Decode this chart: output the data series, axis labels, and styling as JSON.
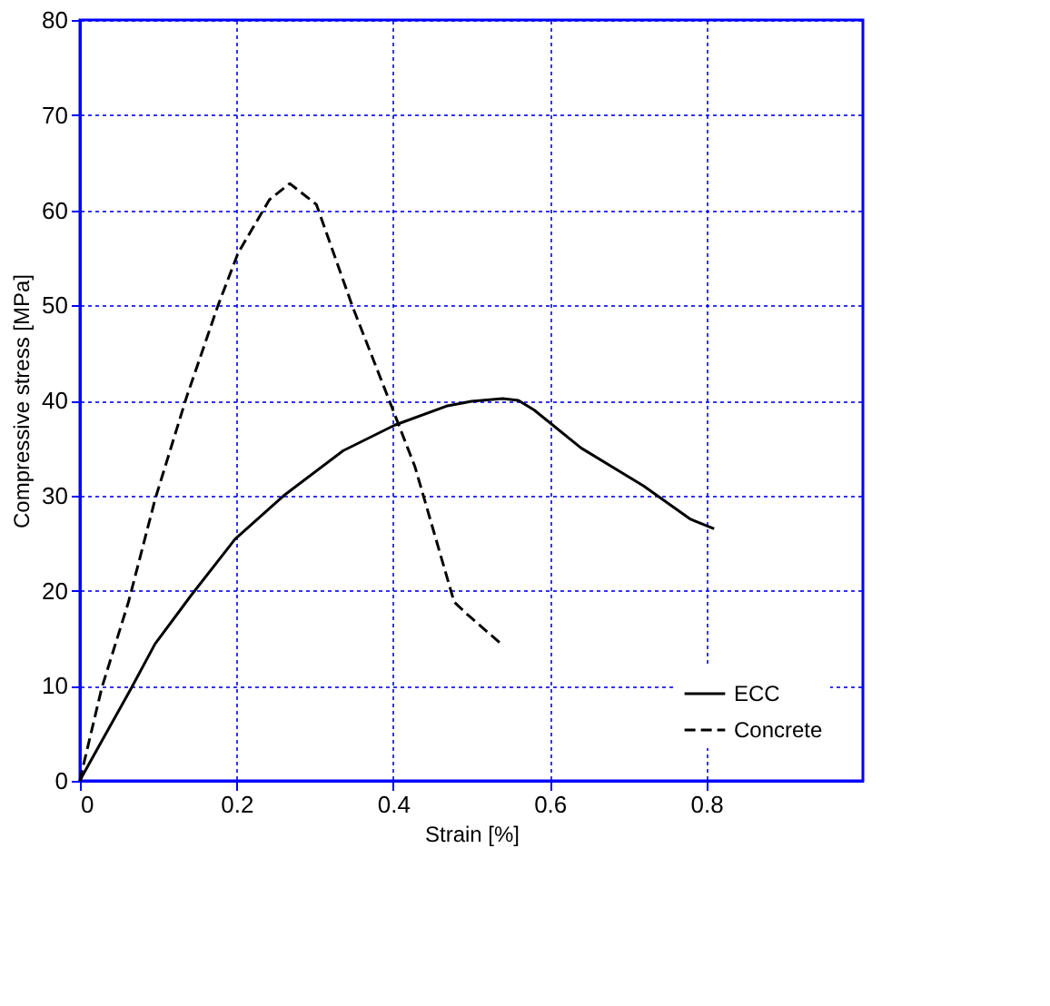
{
  "chart_data": {
    "type": "line",
    "xlabel": "Strain [%]",
    "ylabel": "Compressive stress [MPa]",
    "xlim": [
      0,
      1
    ],
    "ylim": [
      0,
      80
    ],
    "xticks": [
      0,
      0.2,
      0.4,
      0.6,
      0.8
    ],
    "yticks": [
      0,
      10,
      20,
      30,
      40,
      50,
      60,
      70,
      80
    ],
    "grid": true,
    "legend": "bottom right",
    "marker": "none",
    "series": [
      {
        "name": "ECC",
        "color": "#000000",
        "line_style": "solid",
        "x": [
          0,
          0.003,
          0.028,
          0.066,
          0.096,
          0.142,
          0.198,
          0.262,
          0.336,
          0.402,
          0.468,
          0.5,
          0.54,
          0.56,
          0.58,
          0.64,
          0.72,
          0.78,
          0.81
        ],
        "values": [
          0,
          0.5,
          4.2,
          9.8,
          14.4,
          19.5,
          25.4,
          30.1,
          34.7,
          37.4,
          39.4,
          39.9,
          40.2,
          40,
          39,
          35,
          31,
          27.5,
          26.5
        ]
      },
      {
        "name": "Concrete",
        "color": "#000000",
        "line_style": "dashed",
        "x": [
          0,
          0.002,
          0.028,
          0.062,
          0.096,
          0.136,
          0.176,
          0.202,
          0.242,
          0.268,
          0.302,
          0.348,
          0.396,
          0.428,
          0.478,
          0.496,
          0.538
        ],
        "values": [
          0,
          0.8,
          9.8,
          18.8,
          29.6,
          40.3,
          49.9,
          55.5,
          61.1,
          62.8,
          60.6,
          49.9,
          39.8,
          33,
          18.8,
          17.4,
          14.4
        ]
      }
    ]
  }
}
